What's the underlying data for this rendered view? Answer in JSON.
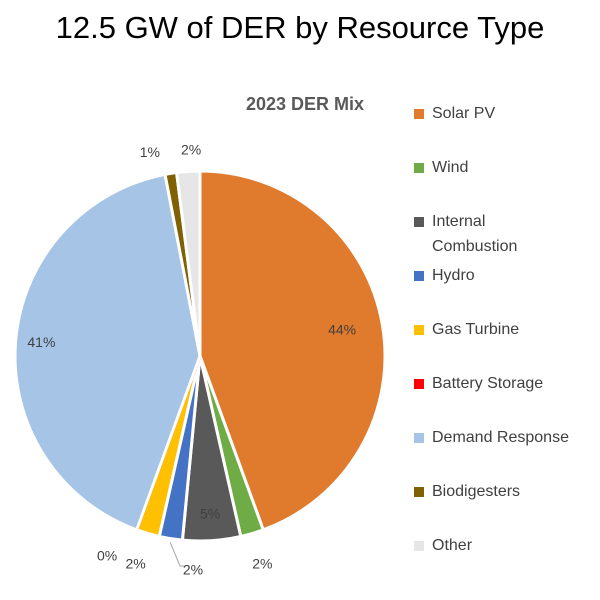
{
  "title": "12.5 GW of DER by Resource Type",
  "chart_data": {
    "type": "pie",
    "title": "2023 DER Mix",
    "slices": [
      {
        "label": "Solar PV",
        "value": 44,
        "display": "44%",
        "color": "#E07A2C"
      },
      {
        "label": "Wind",
        "value": 2,
        "display": "2%",
        "color": "#6FAC46"
      },
      {
        "label": "Internal Combustion",
        "value": 5,
        "display": "5%",
        "color": "#595959"
      },
      {
        "label": "Hydro",
        "value": 2,
        "display": "2%",
        "color": "#4472C4"
      },
      {
        "label": "Gas Turbine",
        "value": 2,
        "display": "2%",
        "color": "#FFC000"
      },
      {
        "label": "Battery Storage",
        "value": 0,
        "display": "0%",
        "color": "#FF0000"
      },
      {
        "label": "Demand Response",
        "value": 41,
        "display": "41%",
        "color": "#A5C4E6"
      },
      {
        "label": "Biodigesters",
        "value": 1,
        "display": "1%",
        "color": "#806000"
      },
      {
        "label": "Other",
        "value": 2,
        "display": "2%",
        "color": "#E6E6E6"
      }
    ]
  }
}
